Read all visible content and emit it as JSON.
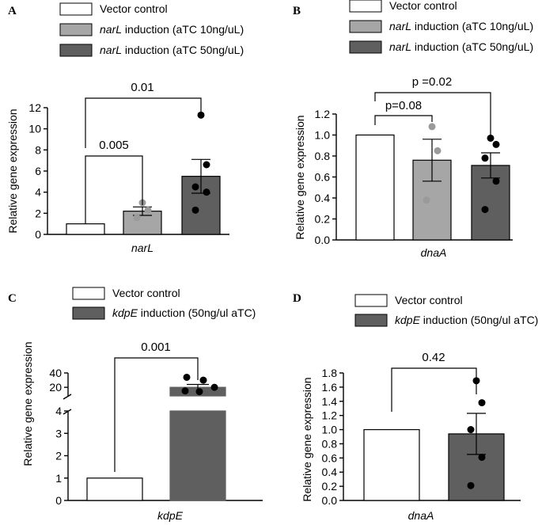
{
  "panels": {
    "A": {
      "label": "A",
      "legend": [
        {
          "prefix": "",
          "gene": "",
          "suffix": "Vector control",
          "color": "#ffffff"
        },
        {
          "prefix": "",
          "gene": "narL",
          "suffix": " induction (aTC 10ng/uL)",
          "color": "#a6a6a6"
        },
        {
          "prefix": "",
          "gene": "narL",
          "suffix": " induction (aTC 50ng/uL)",
          "color": "#5f5f5f"
        }
      ],
      "significance": [
        "0.005",
        "0.01"
      ]
    },
    "B": {
      "label": "B",
      "legend": [
        {
          "prefix": "",
          "gene": "",
          "suffix": "Vector control",
          "color": "#ffffff"
        },
        {
          "prefix": "",
          "gene": "narL",
          "suffix": " induction (aTC 10ng/uL)",
          "color": "#a6a6a6"
        },
        {
          "prefix": "",
          "gene": "narL",
          "suffix": " induction (aTC 50ng/uL)",
          "color": "#5f5f5f"
        }
      ],
      "significance": [
        "p=0.08",
        "p =0.02"
      ]
    },
    "C": {
      "label": "C",
      "legend": [
        {
          "prefix": "",
          "gene": "",
          "suffix": "Vector control",
          "color": "#ffffff"
        },
        {
          "prefix": "",
          "gene": "kdpE",
          "suffix": " induction (50ng/ul aTC)",
          "color": "#5f5f5f"
        }
      ],
      "significance": [
        "0.001"
      ]
    },
    "D": {
      "label": "D",
      "legend": [
        {
          "prefix": "",
          "gene": "",
          "suffix": "Vector control",
          "color": "#ffffff"
        },
        {
          "prefix": "",
          "gene": "kdpE",
          "suffix": " induction (50ng/ul aTC)",
          "color": "#5f5f5f"
        }
      ],
      "significance": [
        "0.42"
      ]
    }
  },
  "chart_data": [
    {
      "panel": "A",
      "type": "bar",
      "ylabel": "Relative gene expression",
      "xlabel": "narL",
      "ylim": [
        0,
        12
      ],
      "yticks": [
        0,
        2,
        4,
        6,
        8,
        10,
        12
      ],
      "bars": [
        {
          "name": "Vector control",
          "value": 1.0,
          "sem": 0,
          "points": []
        },
        {
          "name": "narL induction (aTC 10ng/uL)",
          "value": 2.2,
          "sem": 0.4,
          "points": [
            3.0,
            2.3,
            1.6
          ]
        },
        {
          "name": "narL induction (aTC 50ng/uL)",
          "value": 5.5,
          "sem": 1.6,
          "points": [
            11.3,
            6.6,
            4.5,
            4.0,
            2.3
          ]
        }
      ]
    },
    {
      "panel": "B",
      "type": "bar",
      "ylabel": "Relative gene expression",
      "xlabel": "dnaA",
      "ylim": [
        0,
        1.2
      ],
      "yticks": [
        0.0,
        0.2,
        0.4,
        0.6,
        0.8,
        1.0,
        1.2
      ],
      "bars": [
        {
          "name": "Vector control",
          "value": 1.0,
          "sem": 0,
          "points": []
        },
        {
          "name": "narL induction (aTC 10ng/uL)",
          "value": 0.76,
          "sem": 0.2,
          "points": [
            1.08,
            0.85,
            0.38
          ]
        },
        {
          "name": "narL induction (aTC 50ng/uL)",
          "value": 0.71,
          "sem": 0.12,
          "points": [
            0.97,
            0.91,
            0.78,
            0.56,
            0.29
          ]
        }
      ]
    },
    {
      "panel": "C",
      "type": "bar",
      "ylabel": "Relative gene expression",
      "xlabel": "kdpE",
      "ylim": [
        0,
        40
      ],
      "yticks": [
        0,
        1,
        2,
        3,
        4,
        20,
        40
      ],
      "axis_break": [
        4,
        8
      ],
      "bars": [
        {
          "name": "Vector control",
          "value": 1.0,
          "sem": 0,
          "points": []
        },
        {
          "name": "kdpE induction (50ng/ul aTC)",
          "value": 20,
          "sem": 4,
          "points": [
            34,
            30,
            20,
            15,
            14
          ]
        }
      ]
    },
    {
      "panel": "D",
      "type": "bar",
      "ylabel": "Relative gene expression",
      "xlabel": "dnaA",
      "ylim": [
        0,
        1.8
      ],
      "yticks": [
        0.0,
        0.2,
        0.4,
        0.6,
        0.8,
        1.0,
        1.2,
        1.4,
        1.6,
        1.8
      ],
      "bars": [
        {
          "name": "Vector control",
          "value": 1.0,
          "sem": 0,
          "points": []
        },
        {
          "name": "kdpE induction (50ng/ul aTC)",
          "value": 0.94,
          "sem": 0.29,
          "points": [
            1.69,
            1.38,
            1.0,
            0.61,
            0.21
          ]
        }
      ]
    }
  ]
}
